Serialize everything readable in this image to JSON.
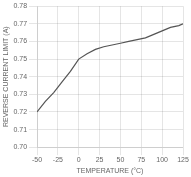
{
  "chart_data": {
    "type": "line",
    "xlabel": "TEMPERATURE (°C)",
    "ylabel": "REVERSE CURRENT LIMIT (A)",
    "x": [
      -50,
      -40,
      -30,
      -20,
      -10,
      0,
      10,
      20,
      30,
      40,
      50,
      60,
      70,
      80,
      90,
      100,
      110,
      120,
      125
    ],
    "values": [
      0.72,
      0.726,
      0.731,
      0.737,
      0.743,
      0.75,
      0.753,
      0.7555,
      0.757,
      0.758,
      0.759,
      0.76,
      0.761,
      0.762,
      0.764,
      0.766,
      0.768,
      0.769,
      0.77
    ],
    "color": "#555555",
    "xlim": [
      -50,
      125
    ],
    "ylim": [
      0.7,
      0.78
    ],
    "xticks": [
      -50,
      -25,
      0,
      25,
      50,
      75,
      100,
      125
    ],
    "yticks": [
      {
        "value": 0.7,
        "label": "0.70"
      },
      {
        "value": 0.71,
        "label": "0.71"
      },
      {
        "value": 0.72,
        "label": "0.72"
      },
      {
        "value": 0.73,
        "label": "0.73"
      },
      {
        "value": 0.74,
        "label": "0.74"
      },
      {
        "value": 0.75,
        "label": "0.75"
      },
      {
        "value": 0.76,
        "label": "0.76"
      },
      {
        "value": 0.77,
        "label": "0.77"
      },
      {
        "value": 0.78,
        "label": "0.78"
      }
    ],
    "grid": true
  }
}
